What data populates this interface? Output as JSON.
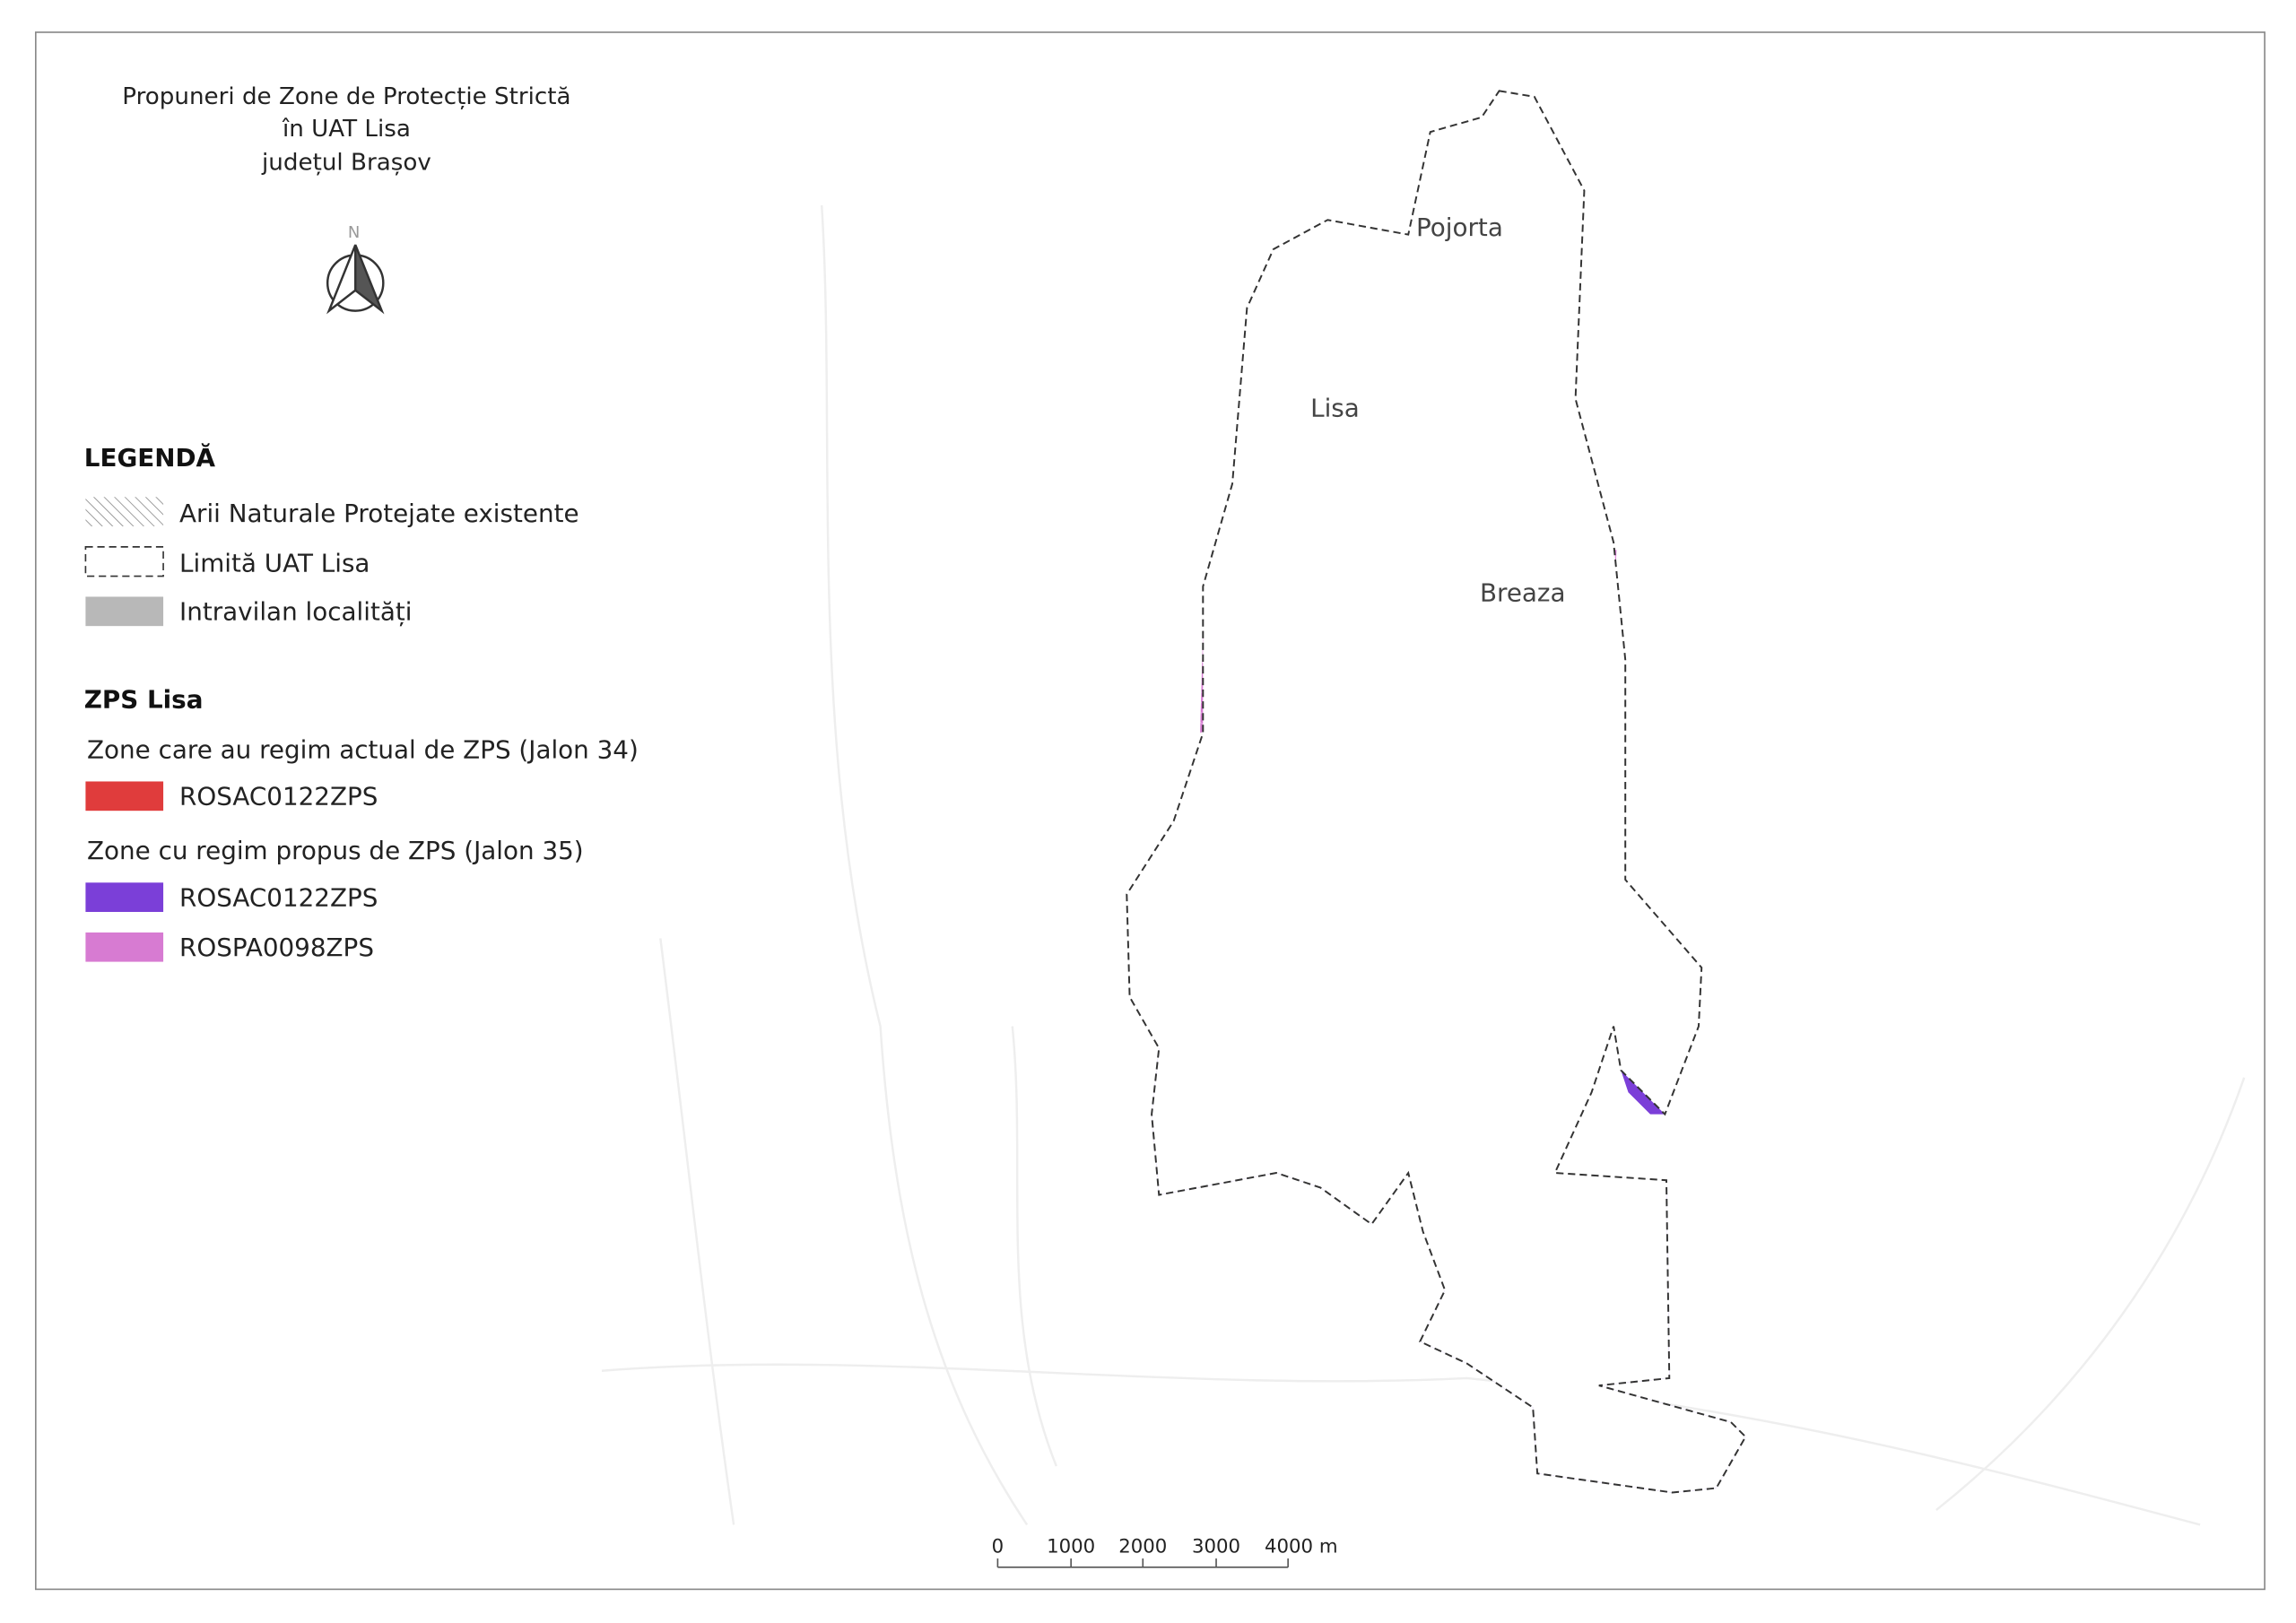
{
  "title": [
    "Propuneri de Zone de Protecție Strictă",
    "în UAT Lisa",
    "județul Brașov"
  ],
  "north": "N",
  "legend": {
    "title": "LEGENDĂ",
    "items": [
      "Arii Naturale Protejate existente",
      "Limită UAT Lisa",
      "Intravilan localități"
    ]
  },
  "zps": {
    "title": "ZPS Lisa",
    "groups": [
      {
        "heading": "Zone care au regim actual de ZPS (Jalon 34)",
        "items": [
          "ROSAC0122ZPS"
        ]
      },
      {
        "heading": "Zone cu regim propus de ZPS (Jalon 35)",
        "items": [
          "ROSAC0122ZPS",
          "ROSPA0098ZPS"
        ]
      }
    ]
  },
  "places": [
    "Pojorta",
    "Lisa",
    "Breaza"
  ],
  "scale_bar": {
    "labels": [
      "0",
      "1000",
      "2000",
      "3000",
      "4000 m"
    ]
  }
}
